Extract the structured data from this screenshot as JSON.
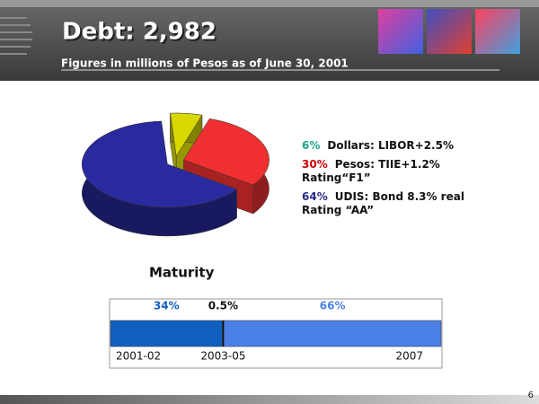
{
  "slide": {
    "title": "Debt: 2,982",
    "subtitle": "Figures in millions of Pesos as of June 30, 2001",
    "page_number": 6
  },
  "chart_data": [
    {
      "type": "pie",
      "categories": [
        "Dollars: LIBOR+2.5%",
        "Pesos: TIIE+1.2% Rating“F1”",
        "UDIS: Bond 8.3% real Rating “AA”"
      ],
      "values": [
        6,
        30,
        64
      ],
      "value_labels": [
        "6%",
        "30%",
        "64%"
      ],
      "colors": [
        "#d8d800",
        "#f03030",
        "#2a2aa0"
      ],
      "label_colors": [
        "#1aa58a",
        "#cc0000",
        "#2a2a8a"
      ]
    },
    {
      "type": "stacked-bar",
      "title": "Maturity",
      "categories": [
        "2001-02",
        "2003-05",
        "2007"
      ],
      "values": [
        34,
        0.5,
        66
      ],
      "value_labels": [
        "34%",
        "0.5%",
        "66%"
      ],
      "colors": [
        "#1060c0",
        "#111111",
        "#4a80e6"
      ],
      "label_colors": [
        "#1060c0",
        "#111111",
        "#4a80e6"
      ]
    }
  ]
}
